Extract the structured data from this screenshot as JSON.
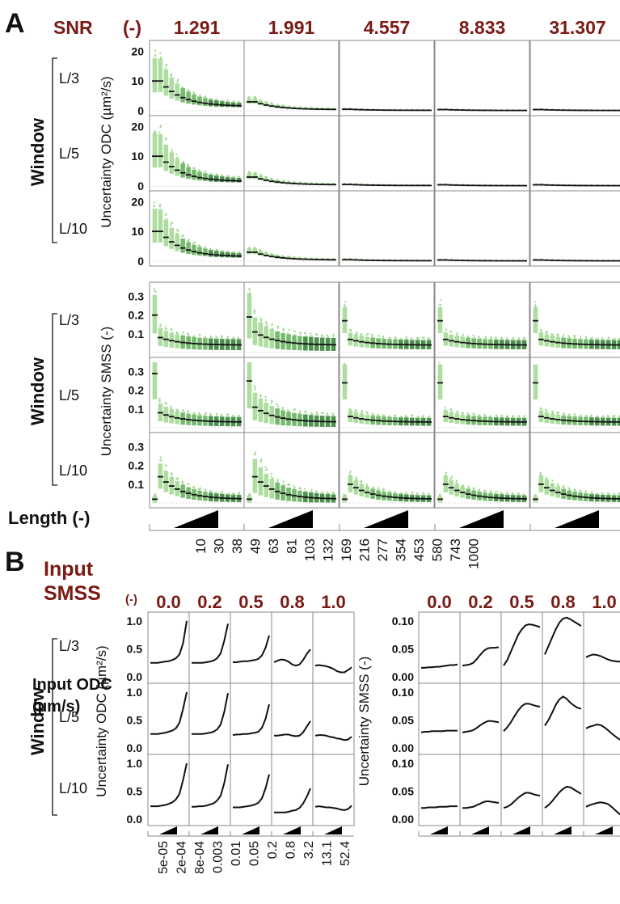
{
  "colors": {
    "accent": "#7a1a14",
    "text": "#111111",
    "panel_border": "#888888",
    "gridline": "#dddddd",
    "light_green": "#9fd88f",
    "mid_green": "#5fae55",
    "dark_green": "#2e7d32",
    "median": "#111111"
  },
  "panel_a": {
    "letter": "A",
    "snr_label": "SNR",
    "snr_unit": "(-)",
    "snr_values": [
      "1.291",
      "1.991",
      "4.557",
      "8.833",
      "31.307"
    ],
    "window_label": "Window",
    "windows": [
      "L/3",
      "L/5",
      "L/10"
    ],
    "odc_ylabel": "Uncertainty ODC (µm²/s)",
    "odc_ticks": [
      "20",
      "10",
      "0"
    ],
    "smss_ylabel": "Uncertainty SMSS (-)",
    "smss_ticks": [
      "0.3",
      "0.2",
      "0.1"
    ],
    "length_label": "Length (-)",
    "length_ticks": [
      "10",
      "30",
      "38",
      "49",
      "63",
      "81",
      "103",
      "132",
      "169",
      "216",
      "277",
      "354",
      "453",
      "580",
      "743",
      "1000"
    ]
  },
  "panel_b": {
    "letter": "B",
    "input_label": "Input",
    "smss_label": "SMSS",
    "smss_unit": "(-)",
    "smss_values": [
      "0.0",
      "0.2",
      "0.5",
      "0.8",
      "1.0"
    ],
    "window_label": "Window",
    "windows": [
      "L/3",
      "L/5",
      "L/10"
    ],
    "odc_ylabel": "Uncertainty ODC (µm²/s)",
    "odc_ticks": [
      "1.0",
      "0.5",
      "0.0"
    ],
    "smss_ylabel": "Uncertainty SMSS (-)",
    "smss_ticks": [
      "0.10",
      "0.05",
      "0.00"
    ],
    "input_odc_label": "Input ODC",
    "input_odc_unit": "(µm/s)",
    "input_odc_ticks": [
      "5e-05",
      "2e-04",
      "8e-04",
      "0.003",
      "0.01",
      "0.05",
      "0.2",
      "0.8",
      "3.2",
      "13.1",
      "52.4"
    ]
  },
  "chart_data": [
    {
      "type": "box",
      "panel": "A-ODC",
      "columns": [
        "1.291",
        "1.991",
        "4.557",
        "8.833",
        "31.307"
      ],
      "rows": [
        "L/3",
        "L/5",
        "L/10"
      ],
      "x": [
        "10",
        "30",
        "38",
        "49",
        "63",
        "81",
        "103",
        "132",
        "169",
        "216",
        "277",
        "354",
        "453",
        "580",
        "743",
        "1000"
      ],
      "ylim": [
        0,
        22
      ],
      "median_start": [
        10,
        3,
        0.5,
        0.4,
        0.4
      ],
      "median_end": [
        1.5,
        0.4,
        0.15,
        0.1,
        0.1
      ],
      "spread": [
        1.0,
        0.5,
        0.3,
        0.2,
        0.2
      ]
    },
    {
      "type": "box",
      "panel": "A-SMSS",
      "columns": [
        "1.291",
        "1.991",
        "4.557",
        "8.833",
        "31.307"
      ],
      "rows": [
        "L/3",
        "L/5",
        "L/10"
      ],
      "x": [
        "10",
        "30",
        "38",
        "49",
        "63",
        "81",
        "103",
        "132",
        "169",
        "216",
        "277",
        "354",
        "453",
        "580",
        "743",
        "1000"
      ],
      "ylim": [
        0,
        0.35
      ],
      "first_median": [
        [
          0.2,
          0.19,
          0.17,
          0.17,
          0.17
        ],
        [
          0.29,
          0.25,
          0.24,
          0.24,
          0.24
        ],
        [
          0.02,
          0.02,
          0.02,
          0.02,
          0.02
        ]
      ],
      "median_start": [
        [
          0.08,
          0.11,
          0.07,
          0.07,
          0.07
        ],
        [
          0.08,
          0.11,
          0.06,
          0.06,
          0.06
        ],
        [
          0.14,
          0.14,
          0.1,
          0.1,
          0.1
        ]
      ],
      "median_end": [
        [
          0.04,
          0.04,
          0.04,
          0.04,
          0.04
        ],
        [
          0.03,
          0.03,
          0.03,
          0.03,
          0.03
        ],
        [
          0.02,
          0.02,
          0.02,
          0.02,
          0.02
        ]
      ],
      "spread": [
        [
          0.8,
          1.0,
          0.6,
          0.6,
          0.6
        ],
        [
          0.8,
          1.0,
          0.6,
          0.6,
          0.6
        ],
        [
          0.7,
          1.0,
          0.6,
          0.6,
          0.6
        ]
      ]
    },
    {
      "type": "line",
      "panel": "B-ODC",
      "columns": [
        "0.0",
        "0.2",
        "0.5",
        "0.8",
        "1.0"
      ],
      "rows": [
        "L/3",
        "L/5",
        "L/10"
      ],
      "x": [
        "5e-05",
        "2e-04",
        "8e-04",
        "0.003",
        "0.01",
        "0.05",
        "0.2",
        "0.8",
        "3.2",
        "13.1",
        "52.4"
      ],
      "ylim": [
        0,
        1.1
      ],
      "series": [
        [
          [
            0.25,
            0.25,
            0.25,
            0.26,
            0.27,
            0.28,
            0.3,
            0.33,
            0.4,
            0.6,
            1.0
          ],
          [
            0.25,
            0.25,
            0.25,
            0.25,
            0.26,
            0.27,
            0.29,
            0.33,
            0.42,
            0.65,
            0.95
          ],
          [
            0.26,
            0.26,
            0.27,
            0.28,
            0.28,
            0.29,
            0.3,
            0.32,
            0.38,
            0.52,
            0.74
          ],
          [
            0.26,
            0.29,
            0.31,
            0.3,
            0.27,
            0.22,
            0.2,
            0.22,
            0.3,
            0.41,
            0.49
          ],
          [
            0.2,
            0.21,
            0.2,
            0.19,
            0.17,
            0.14,
            0.1,
            0.08,
            0.08,
            0.12,
            0.17
          ]
        ],
        [
          [
            0.25,
            0.25,
            0.25,
            0.26,
            0.27,
            0.29,
            0.31,
            0.35,
            0.45,
            0.7,
            1.0
          ],
          [
            0.25,
            0.25,
            0.25,
            0.25,
            0.26,
            0.27,
            0.29,
            0.33,
            0.42,
            0.65,
            0.98
          ],
          [
            0.23,
            0.24,
            0.24,
            0.25,
            0.25,
            0.26,
            0.27,
            0.29,
            0.36,
            0.52,
            0.78
          ],
          [
            0.22,
            0.22,
            0.23,
            0.24,
            0.24,
            0.22,
            0.21,
            0.22,
            0.28,
            0.38,
            0.48
          ],
          [
            0.22,
            0.23,
            0.23,
            0.22,
            0.2,
            0.19,
            0.17,
            0.16,
            0.14,
            0.15,
            0.2
          ]
        ],
        [
          [
            0.23,
            0.23,
            0.23,
            0.24,
            0.25,
            0.27,
            0.3,
            0.35,
            0.45,
            0.7,
            1.0
          ],
          [
            0.22,
            0.22,
            0.23,
            0.23,
            0.24,
            0.26,
            0.28,
            0.33,
            0.42,
            0.65,
            0.98
          ],
          [
            0.21,
            0.21,
            0.21,
            0.22,
            0.23,
            0.24,
            0.26,
            0.29,
            0.37,
            0.55,
            0.8
          ],
          [
            0.12,
            0.12,
            0.12,
            0.12,
            0.13,
            0.15,
            0.16,
            0.2,
            0.28,
            0.4,
            0.55
          ],
          [
            0.22,
            0.23,
            0.22,
            0.21,
            0.21,
            0.2,
            0.19,
            0.17,
            0.16,
            0.18,
            0.24
          ]
        ]
      ]
    },
    {
      "type": "line",
      "panel": "B-SMSS",
      "columns": [
        "0.0",
        "0.2",
        "0.5",
        "0.8",
        "1.0"
      ],
      "rows": [
        "L/3",
        "L/5",
        "L/10"
      ],
      "x": [
        "5e-05",
        "2e-04",
        "8e-04",
        "0.003",
        "0.01",
        "0.05",
        "0.2",
        "0.8",
        "3.2",
        "13.1",
        "52.4"
      ],
      "ylim": [
        0,
        0.11
      ],
      "series": [
        [
          [
            0.016,
            0.016,
            0.017,
            0.017,
            0.018,
            0.018,
            0.019,
            0.02,
            0.021,
            0.021,
            0.022
          ],
          [
            0.02,
            0.021,
            0.022,
            0.025,
            0.032,
            0.04,
            0.047,
            0.051,
            0.052,
            0.052,
            0.053
          ],
          [
            0.02,
            0.03,
            0.045,
            0.06,
            0.075,
            0.085,
            0.092,
            0.094,
            0.093,
            0.091,
            0.089
          ],
          [
            0.04,
            0.055,
            0.07,
            0.085,
            0.097,
            0.104,
            0.106,
            0.103,
            0.099,
            0.095,
            0.091
          ],
          [
            0.035,
            0.038,
            0.04,
            0.039,
            0.037,
            0.034,
            0.031,
            0.029,
            0.028,
            0.027,
            0.027
          ]
        ],
        [
          [
            0.028,
            0.029,
            0.029,
            0.03,
            0.03,
            0.03,
            0.03,
            0.031,
            0.031,
            0.031,
            0.031
          ],
          [
            0.028,
            0.029,
            0.03,
            0.032,
            0.036,
            0.041,
            0.045,
            0.048,
            0.048,
            0.047,
            0.046
          ],
          [
            0.03,
            0.037,
            0.046,
            0.057,
            0.067,
            0.075,
            0.079,
            0.079,
            0.077,
            0.075,
            0.074
          ],
          [
            0.04,
            0.05,
            0.063,
            0.077,
            0.087,
            0.092,
            0.088,
            0.081,
            0.076,
            0.072,
            0.07
          ],
          [
            0.035,
            0.038,
            0.04,
            0.042,
            0.041,
            0.037,
            0.032,
            0.026,
            0.021,
            0.016,
            0.013
          ]
        ],
        [
          [
            0.02,
            0.02,
            0.021,
            0.021,
            0.021,
            0.022,
            0.022,
            0.022,
            0.023,
            0.023,
            0.023
          ],
          [
            0.02,
            0.02,
            0.021,
            0.022,
            0.025,
            0.028,
            0.031,
            0.032,
            0.031,
            0.03,
            0.029
          ],
          [
            0.02,
            0.022,
            0.026,
            0.032,
            0.038,
            0.043,
            0.047,
            0.047,
            0.045,
            0.043,
            0.042
          ],
          [
            0.02,
            0.025,
            0.032,
            0.04,
            0.048,
            0.054,
            0.058,
            0.057,
            0.053,
            0.049,
            0.045
          ],
          [
            0.022,
            0.025,
            0.027,
            0.029,
            0.03,
            0.029,
            0.027,
            0.022,
            0.016,
            0.01,
            0.006
          ]
        ]
      ]
    }
  ]
}
